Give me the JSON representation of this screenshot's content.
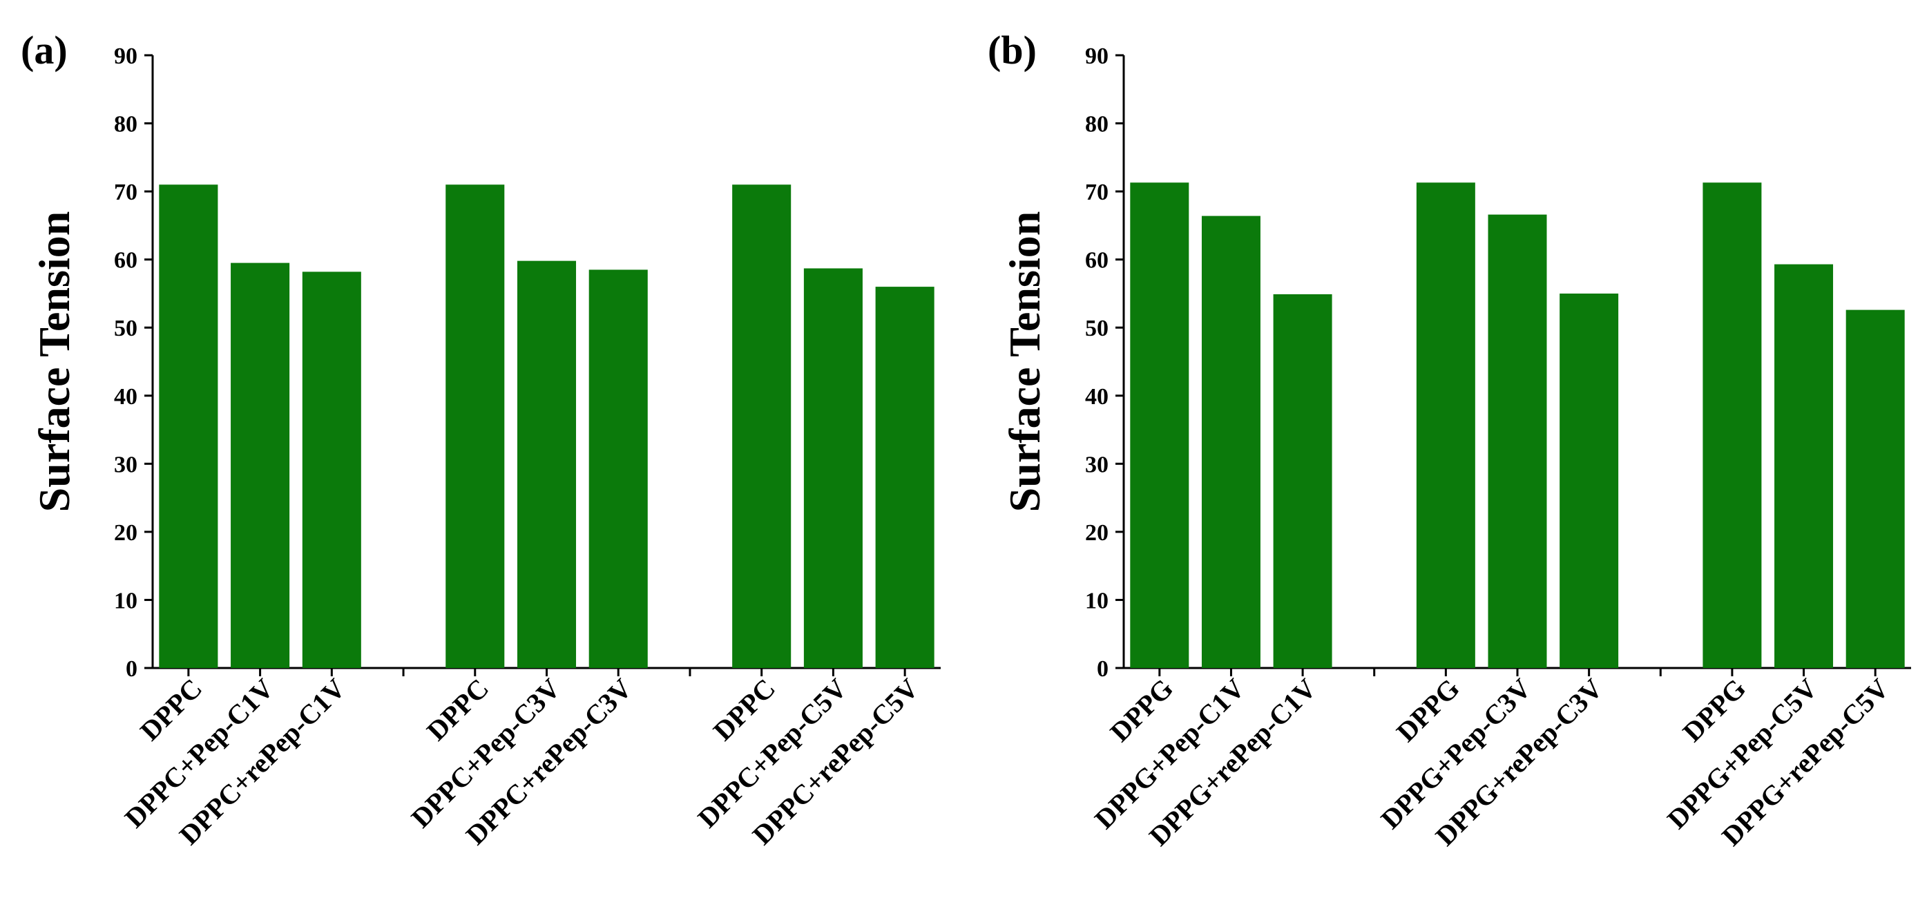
{
  "colors": {
    "bar": "#0b7a0b",
    "axis": "#000000"
  },
  "chart_data": [
    {
      "type": "bar",
      "panel_label": "(a)",
      "title": "",
      "xlabel": "",
      "ylabel": "Surface Tension",
      "ylim": [
        0,
        90
      ],
      "yticks": [
        "0",
        "10",
        "20",
        "30",
        "40",
        "50",
        "60",
        "70",
        "80",
        "90"
      ],
      "categories": [
        "DPPC",
        "DPPC+Pep-C1V",
        "DPPC+rePep-C1V",
        "DPPC",
        "DPPC+Pep-C3V",
        "DPPC+rePep-C3V",
        "DPPC",
        "DPPC+Pep-C5V",
        "DPPC+rePep-C5V"
      ],
      "values": [
        71,
        59.5,
        58.2,
        71,
        59.8,
        58.5,
        71,
        58.7,
        56
      ]
    },
    {
      "type": "bar",
      "panel_label": "(b)",
      "title": "",
      "xlabel": "",
      "ylabel": "Surface Tension",
      "ylim": [
        0,
        90
      ],
      "yticks": [
        "0",
        "10",
        "20",
        "30",
        "40",
        "50",
        "60",
        "70",
        "80",
        "90"
      ],
      "categories": [
        "DPPG",
        "DPPG+Pep-C1V",
        "DPPG+rePep-C1V",
        "DPPG",
        "DPPG+Pep-C3V",
        "DPPG+rePep-C3V",
        "DPPG",
        "DPPG+Pep-C5V",
        "DPPG+rePep-C5V"
      ],
      "values": [
        71.3,
        66.4,
        54.9,
        71.3,
        66.6,
        55,
        71.3,
        59.3,
        52.6
      ]
    }
  ]
}
